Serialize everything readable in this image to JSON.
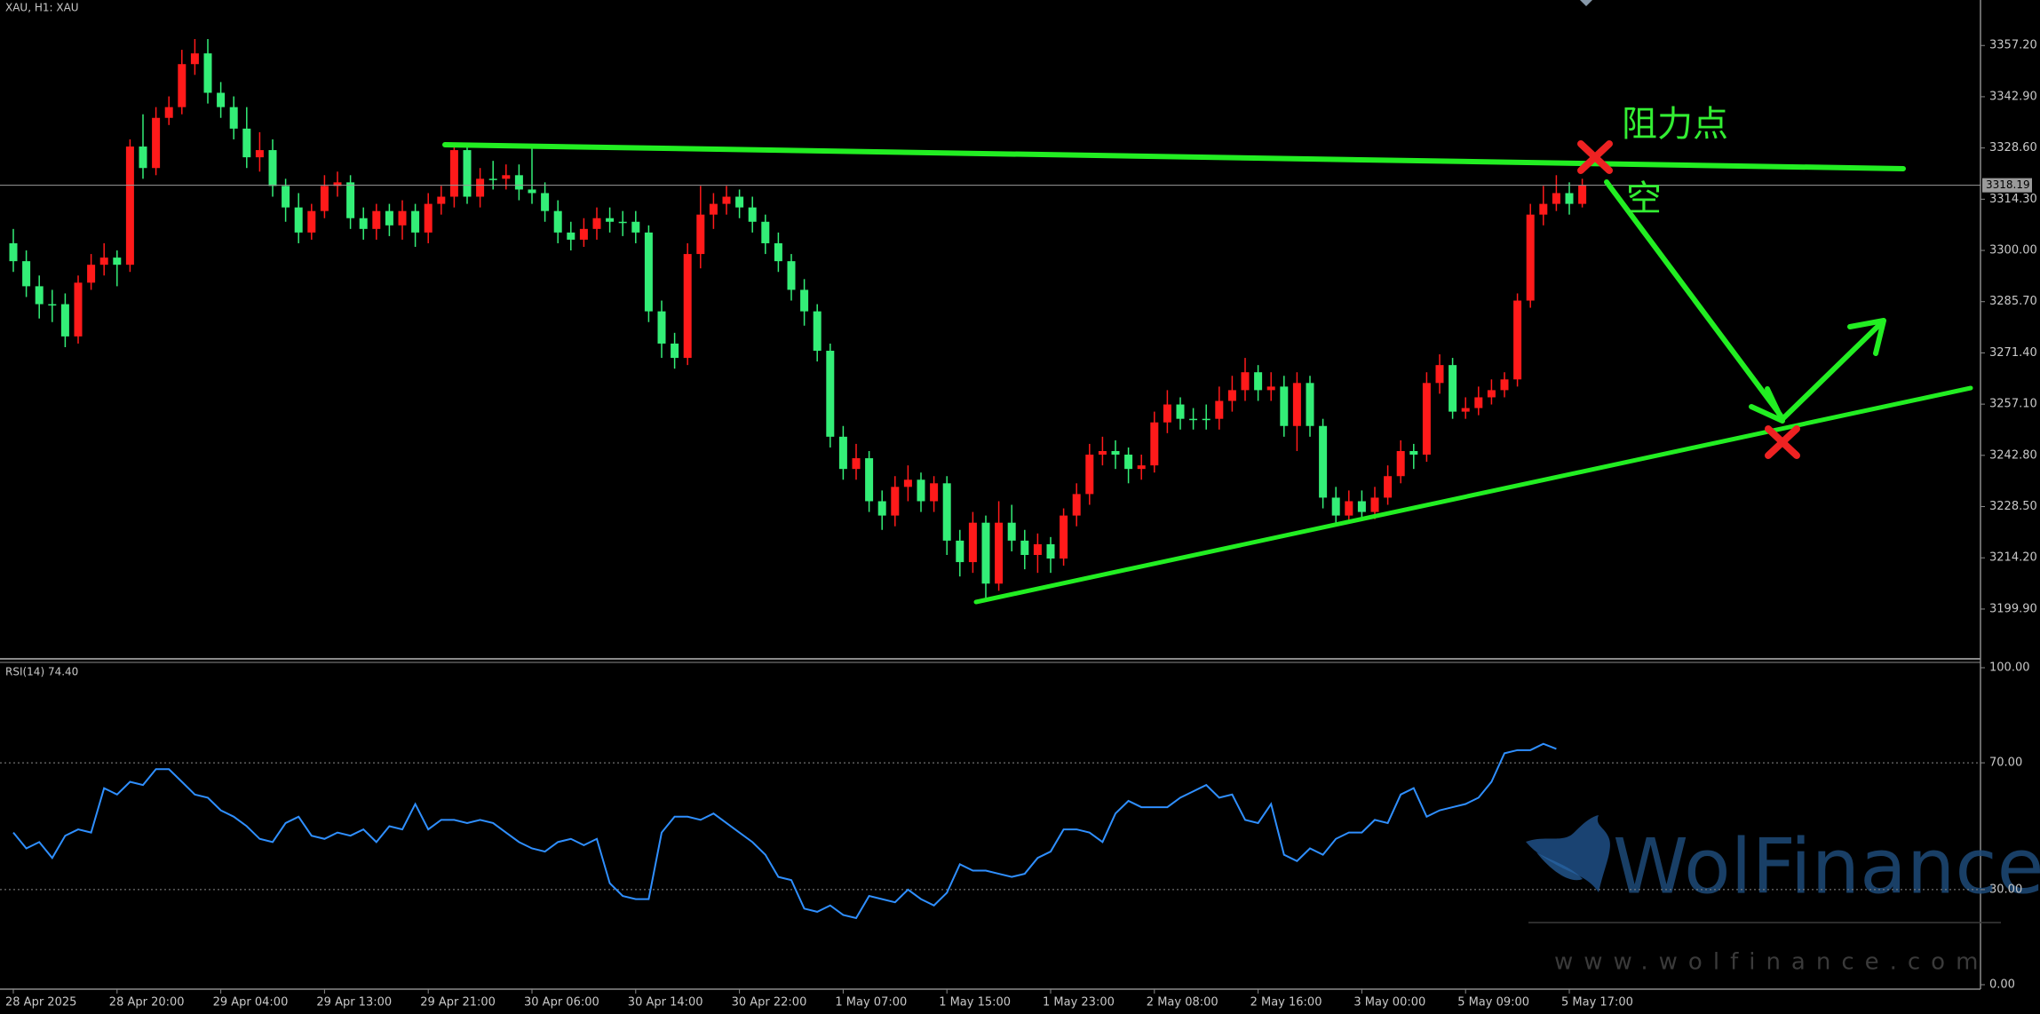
{
  "header": "XAU, H1:  XAU",
  "annotations": {
    "resistance": "阻力点",
    "short": "空"
  },
  "watermark": {
    "brand": "WolFinance",
    "url": "www.wolfinance.com"
  },
  "chart_data": [
    {
      "type": "candlestick",
      "up_color": "#ff1a1a",
      "down_color": "#33ee77",
      "categories": [
        "28 Apr 2025",
        null,
        null,
        null,
        null,
        null,
        null,
        null,
        "28 Apr 20:00",
        null,
        null,
        null,
        null,
        null,
        null,
        null,
        "29 Apr 04:00",
        null,
        null,
        null,
        null,
        null,
        null,
        null,
        "29 Apr 13:00",
        null,
        null,
        null,
        null,
        null,
        null,
        null,
        "29 Apr 21:00",
        null,
        null,
        null,
        null,
        null,
        null,
        null,
        "30 Apr 06:00",
        null,
        null,
        null,
        null,
        null,
        null,
        null,
        "30 Apr 14:00",
        null,
        null,
        null,
        null,
        null,
        null,
        null,
        "30 Apr 22:00",
        null,
        null,
        null,
        null,
        null,
        null,
        null,
        "1 May 07:00",
        null,
        null,
        null,
        null,
        null,
        null,
        null,
        "1 May 15:00",
        null,
        null,
        null,
        null,
        null,
        null,
        null,
        "1 May 23:00",
        null,
        null,
        null,
        null,
        null,
        null,
        null,
        "2 May 08:00",
        null,
        null,
        null,
        null,
        null,
        null,
        null,
        "2 May 16:00",
        null,
        null,
        null,
        null,
        null,
        null,
        null,
        "3 May 00:00",
        null,
        null,
        null,
        null,
        null,
        null,
        null,
        "5 May 09:00",
        null,
        null,
        null,
        null,
        null,
        null,
        null,
        "5 May 17:00",
        null
      ],
      "open": [
        3302,
        3297,
        3290,
        3285,
        3285,
        3276,
        3291,
        3296,
        3298,
        3296,
        3329,
        3323,
        3337,
        3340,
        3352,
        3355,
        3344,
        3340,
        3334,
        3326,
        3328,
        3318,
        3312,
        3305,
        3311,
        3318,
        3319,
        3309,
        3306,
        3311,
        3307,
        3311,
        3305,
        3313,
        3315,
        3328,
        3315,
        3320,
        3320,
        3321,
        3317,
        3316,
        3311,
        3305,
        3303,
        3306,
        3309,
        3308,
        3308,
        3305,
        3283,
        3274,
        3270,
        3299,
        3310,
        3313,
        3315,
        3312,
        3308,
        3302,
        3297,
        3289,
        3283,
        3272,
        3248,
        3239,
        3242,
        3230,
        3226,
        3234,
        3236,
        3230,
        3235,
        3219,
        3213,
        3224,
        3207,
        3224,
        3219,
        3215,
        3218,
        3214,
        3226,
        3232,
        3243,
        3244,
        3243,
        3239,
        3240,
        3252,
        3257,
        3253,
        3253,
        3253,
        3258,
        3261,
        3266,
        3261,
        3262,
        3251,
        3263,
        3251,
        3231,
        3226,
        3230,
        3227,
        3231,
        3237,
        3244,
        3243,
        3263,
        3268,
        3255,
        3256,
        3259,
        3261,
        3264,
        3286,
        3310,
        3313,
        3316,
        3313
      ],
      "high": [
        3306,
        3300,
        3293,
        3289,
        3288,
        3293,
        3299,
        3302,
        3300,
        3331,
        3338,
        3340,
        3343,
        3356,
        3359,
        3359,
        3347,
        3343,
        3340,
        3333,
        3331,
        3320,
        3316,
        3313,
        3321,
        3322,
        3321,
        3312,
        3313,
        3313,
        3314,
        3313,
        3316,
        3318,
        3330,
        3330,
        3323,
        3325,
        3324,
        3324,
        3329,
        3319,
        3314,
        3308,
        3309,
        3312,
        3312,
        3311,
        3311,
        3307,
        3286,
        3277,
        3302,
        3318,
        3316,
        3318,
        3317,
        3315,
        3310,
        3305,
        3299,
        3292,
        3285,
        3274,
        3251,
        3246,
        3244,
        3233,
        3237,
        3240,
        3238,
        3237,
        3237,
        3222,
        3227,
        3226,
        3230,
        3229,
        3222,
        3221,
        3220,
        3228,
        3235,
        3246,
        3248,
        3247,
        3245,
        3243,
        3255,
        3261,
        3259,
        3256,
        3257,
        3262,
        3265,
        3270,
        3268,
        3266,
        3265,
        3266,
        3265,
        3253,
        3234,
        3233,
        3233,
        3234,
        3240,
        3247,
        3246,
        3266,
        3271,
        3270,
        3259,
        3262,
        3264,
        3266,
        3288,
        3313,
        3318,
        3321,
        3319,
        3320
      ],
      "low": [
        3294,
        3287,
        3281,
        3280,
        3273,
        3274,
        3289,
        3293,
        3290,
        3294,
        3320,
        3321,
        3335,
        3338,
        3349,
        3341,
        3337,
        3331,
        3323,
        3322,
        3315,
        3308,
        3302,
        3303,
        3309,
        3315,
        3306,
        3303,
        3303,
        3304,
        3303,
        3301,
        3302,
        3310,
        3312,
        3313,
        3312,
        3317,
        3317,
        3314,
        3313,
        3308,
        3302,
        3300,
        3301,
        3303,
        3305,
        3304,
        3302,
        3280,
        3270,
        3267,
        3268,
        3295,
        3306,
        3310,
        3309,
        3305,
        3299,
        3294,
        3286,
        3279,
        3269,
        3245,
        3236,
        3236,
        3227,
        3222,
        3223,
        3230,
        3227,
        3227,
        3215,
        3209,
        3210,
        3202,
        3205,
        3216,
        3211,
        3210,
        3210,
        3212,
        3223,
        3229,
        3240,
        3239,
        3235,
        3236,
        3238,
        3249,
        3250,
        3250,
        3250,
        3250,
        3255,
        3258,
        3258,
        3258,
        3248,
        3244,
        3248,
        3228,
        3223,
        3224,
        3225,
        3225,
        3229,
        3235,
        3239,
        3241,
        3260,
        3253,
        3253,
        3254,
        3257,
        3259,
        3262,
        3284,
        3307,
        3311,
        3310,
        3312
      ],
      "close": [
        3297,
        3290,
        3285,
        3285,
        3276,
        3291,
        3296,
        3298,
        3296,
        3329,
        3323,
        3337,
        3340,
        3352,
        3355,
        3344,
        3340,
        3334,
        3326,
        3328,
        3318,
        3312,
        3305,
        3311,
        3318,
        3319,
        3309,
        3306,
        3311,
        3307,
        3311,
        3305,
        3313,
        3315,
        3328,
        3315,
        3320,
        3320,
        3321,
        3317,
        3316,
        3311,
        3305,
        3303,
        3306,
        3309,
        3308,
        3308,
        3305,
        3283,
        3274,
        3270,
        3299,
        3310,
        3313,
        3315,
        3312,
        3308,
        3302,
        3297,
        3289,
        3283,
        3272,
        3248,
        3239,
        3242,
        3230,
        3226,
        3234,
        3236,
        3230,
        3235,
        3219,
        3213,
        3224,
        3207,
        3224,
        3219,
        3215,
        3218,
        3214,
        3226,
        3232,
        3243,
        3244,
        3243,
        3239,
        3240,
        3252,
        3257,
        3253,
        3253,
        3253,
        3258,
        3261,
        3266,
        3261,
        3262,
        3251,
        3263,
        3251,
        3231,
        3226,
        3230,
        3227,
        3231,
        3237,
        3244,
        3243,
        3263,
        3268,
        3255,
        3256,
        3259,
        3261,
        3264,
        3286,
        3310,
        3313,
        3316,
        3313,
        3318.19
      ],
      "last_price": {
        "value": 3318.19,
        "label": "3318.19"
      },
      "ylim": [
        3186.5,
        3369.9
      ],
      "yticks": [
        {
          "value": 3357.2,
          "label": "3357.20"
        },
        {
          "value": 3342.9,
          "label": "3342.90"
        },
        {
          "value": 3328.6,
          "label": "3328.60"
        },
        {
          "value": 3314.3,
          "label": "3314.30"
        },
        {
          "value": 3300,
          "label": "3300.00"
        },
        {
          "value": 3285.7,
          "label": "3285.70"
        },
        {
          "value": 3271.4,
          "label": "3271.40"
        },
        {
          "value": 3257.1,
          "label": "3257.10"
        },
        {
          "value": 3242.8,
          "label": "3242.80"
        },
        {
          "value": 3228.5,
          "label": "3228.50"
        },
        {
          "value": 3214.2,
          "label": "3214.20"
        },
        {
          "value": 3199.9,
          "label": "3199.90"
        }
      ]
    },
    {
      "type": "line",
      "title": "RSI(14) 74.40",
      "color": "#2f8fff",
      "values": [
        48,
        43,
        45,
        40,
        47,
        49,
        48,
        62,
        60,
        64,
        63,
        68,
        68,
        64,
        60,
        59,
        55,
        53,
        50,
        46,
        45,
        51,
        53,
        47,
        46,
        48,
        47,
        49,
        45,
        50,
        49,
        57,
        49,
        52,
        52,
        51,
        52,
        51,
        48,
        45,
        43,
        42,
        45,
        46,
        44,
        46,
        32,
        28,
        27,
        27,
        48,
        53,
        53,
        52,
        54,
        51,
        48,
        45,
        41,
        34,
        33,
        24,
        23,
        25,
        22,
        21,
        28,
        27,
        26,
        30,
        27,
        25,
        29,
        38,
        36,
        36,
        35,
        34,
        35,
        40,
        42,
        49,
        49,
        48,
        45,
        54,
        58,
        56,
        56,
        56,
        59,
        61,
        63,
        59,
        60,
        52,
        51,
        57,
        41,
        39,
        43,
        41,
        46,
        48,
        48,
        52,
        51,
        60,
        62,
        53,
        55,
        56,
        57,
        59,
        64,
        73,
        74,
        74,
        76,
        74.4
      ],
      "ylim": [
        0,
        100
      ],
      "yticks": [
        {
          "value": 100,
          "label": "100.00"
        },
        {
          "value": 70,
          "label": "70.00"
        },
        {
          "value": 30,
          "label": "30.00"
        },
        {
          "value": 0,
          "label": "0.00"
        }
      ],
      "levels": [
        70,
        30
      ]
    }
  ]
}
